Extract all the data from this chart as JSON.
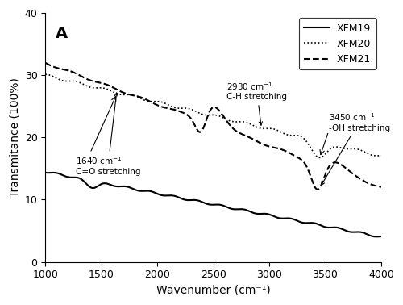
{
  "title": "A",
  "xlabel": "Wavenumber (cm⁻¹)",
  "ylabel": "Transmitance (100%)",
  "xlim": [
    1000,
    4000
  ],
  "ylim": [
    0,
    40
  ],
  "yticks": [
    0,
    10,
    20,
    30,
    40
  ],
  "xticks": [
    1000,
    1500,
    2000,
    2500,
    3000,
    3500,
    4000
  ],
  "legend_labels": [
    "XFM19",
    "XFM20",
    "XFM21"
  ],
  "background_color": "#ffffff",
  "line_color": "#000000"
}
